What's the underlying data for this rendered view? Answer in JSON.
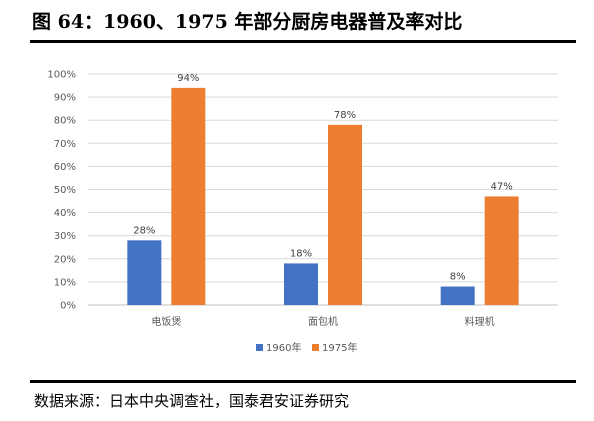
{
  "title": "图 64：1960、1975 年部分厨房电器普及率对比",
  "source": "数据来源：日本中央调查社，国泰君安证券研究",
  "chart_data": {
    "type": "bar",
    "categories": [
      "电饭煲",
      "面包机",
      "料理机"
    ],
    "series": [
      {
        "name": "1960年",
        "values": [
          28,
          18,
          8
        ],
        "labels": [
          "28%",
          "18%",
          "8%"
        ],
        "color": "#4472C4"
      },
      {
        "name": "1975年",
        "values": [
          94,
          78,
          47
        ],
        "labels": [
          "94%",
          "78%",
          "47%"
        ],
        "color": "#ED7D31"
      }
    ],
    "ylim": [
      0,
      100
    ],
    "yticks": [
      "0%",
      "10%",
      "20%",
      "30%",
      "40%",
      "50%",
      "60%",
      "70%",
      "80%",
      "90%",
      "100%"
    ],
    "grid": true,
    "legend": "bottom"
  }
}
